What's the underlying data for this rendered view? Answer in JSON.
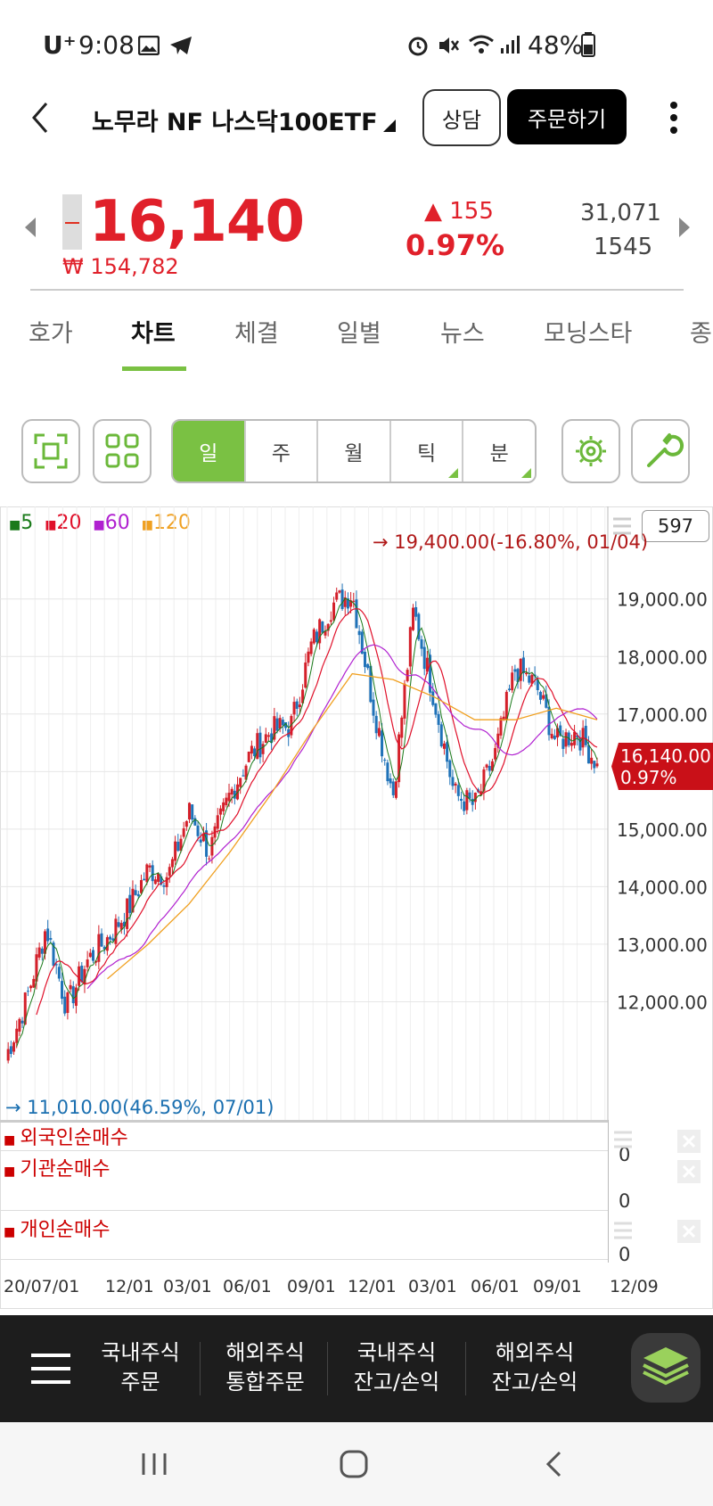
{
  "status": {
    "carrier": "U⁺",
    "time": "9:08",
    "battery": "48%"
  },
  "header": {
    "title": "노무라 NF 나스닥100ETF",
    "consult_label": "상담",
    "order_label": "주문하기"
  },
  "price": {
    "current": "16,140",
    "krw": "₩ 154,782",
    "change": "▲ 155",
    "change_pct": "0.97%",
    "volume": "31,071",
    "sub_value": "1545"
  },
  "tabs": [
    "호가",
    "차트",
    "체결",
    "일별",
    "뉴스",
    "모닝스타",
    "종"
  ],
  "active_tab": "차트",
  "period_buttons": [
    "일",
    "주",
    "월",
    "틱",
    "분"
  ],
  "active_period": "일",
  "chart_data": {
    "type": "candlestick",
    "legend": [
      {
        "name": "5",
        "color": "#1a7a1a"
      },
      {
        "name": "20",
        "color": "#e0102a"
      },
      {
        "name": "60",
        "color": "#b020d0"
      },
      {
        "name": "120",
        "color": "#f0a020"
      }
    ],
    "count_badge": "597",
    "y_ticks": [
      "19,000.00",
      "18,000.00",
      "17,000.00",
      "15,000.00",
      "14,000.00",
      "13,000.00",
      "12,000.00"
    ],
    "y_tick_values": [
      19000,
      18000,
      17000,
      15000,
      14000,
      13000,
      12000
    ],
    "ylim": [
      11000,
      19600
    ],
    "x_ticks": [
      "20/07/01",
      "12/01",
      "03/01",
      "06/01",
      "09/01",
      "12/01",
      "03/01",
      "06/01",
      "09/01",
      "12/09"
    ],
    "high_annotation": "→ 19,400.00(-16.80%, 01/04)",
    "low_annotation": "→ 11,010.00(46.59%, 07/01)",
    "current_label": "16,140.00",
    "current_pct": "0.97%",
    "close_series": [
      {
        "x": "20/07/01",
        "y": 11010
      },
      {
        "x": "20/08/01",
        "y": 12000
      },
      {
        "x": "20/09/01",
        "y": 13300
      },
      {
        "x": "20/10/01",
        "y": 11900
      },
      {
        "x": "20/11/01",
        "y": 12700
      },
      {
        "x": "20/12/01",
        "y": 13100
      },
      {
        "x": "21/01/01",
        "y": 13600
      },
      {
        "x": "21/02/01",
        "y": 14300
      },
      {
        "x": "21/03/01",
        "y": 14200
      },
      {
        "x": "21/04/01",
        "y": 15300
      },
      {
        "x": "21/05/01",
        "y": 14600
      },
      {
        "x": "21/06/01",
        "y": 15600
      },
      {
        "x": "21/07/01",
        "y": 16300
      },
      {
        "x": "21/08/01",
        "y": 16700
      },
      {
        "x": "21/09/01",
        "y": 16800
      },
      {
        "x": "21/10/01",
        "y": 18200
      },
      {
        "x": "21/11/01",
        "y": 18900
      },
      {
        "x": "21/12/01",
        "y": 19100
      },
      {
        "x": "22/01/01",
        "y": 17200
      },
      {
        "x": "22/02/01",
        "y": 15600
      },
      {
        "x": "22/03/01",
        "y": 18800
      },
      {
        "x": "22/04/01",
        "y": 17300
      },
      {
        "x": "22/05/01",
        "y": 15600
      },
      {
        "x": "22/06/01",
        "y": 15400
      },
      {
        "x": "22/07/01",
        "y": 16300
      },
      {
        "x": "22/08/01",
        "y": 17800
      },
      {
        "x": "22/09/01",
        "y": 17500
      },
      {
        "x": "22/10/01",
        "y": 16500
      },
      {
        "x": "22/11/01",
        "y": 16700
      },
      {
        "x": "22/12/09",
        "y": 16140
      }
    ],
    "ma120_series": [
      {
        "x": "20/12/01",
        "y": 12400
      },
      {
        "x": "21/02/01",
        "y": 13000
      },
      {
        "x": "21/04/01",
        "y": 13700
      },
      {
        "x": "21/06/01",
        "y": 14600
      },
      {
        "x": "21/08/01",
        "y": 15600
      },
      {
        "x": "21/10/01",
        "y": 16700
      },
      {
        "x": "21/12/01",
        "y": 17700
      },
      {
        "x": "22/02/01",
        "y": 17600
      },
      {
        "x": "22/04/01",
        "y": 17300
      },
      {
        "x": "22/06/01",
        "y": 16900
      },
      {
        "x": "22/08/01",
        "y": 16900
      },
      {
        "x": "22/10/01",
        "y": 17100
      },
      {
        "x": "22/12/09",
        "y": 16900
      }
    ]
  },
  "indicators": [
    {
      "title": "외국인순매수",
      "value": "0"
    },
    {
      "title": "기관순매수",
      "value": "0"
    },
    {
      "title": "개인순매수",
      "value": "0"
    }
  ],
  "bottom_nav": [
    {
      "line1": "국내주식",
      "line2": "주문"
    },
    {
      "line1": "해외주식",
      "line2": "통합주문"
    },
    {
      "line1": "국내주식",
      "line2": "잔고/손익"
    },
    {
      "line1": "해외주식",
      "line2": "잔고/손익"
    }
  ]
}
